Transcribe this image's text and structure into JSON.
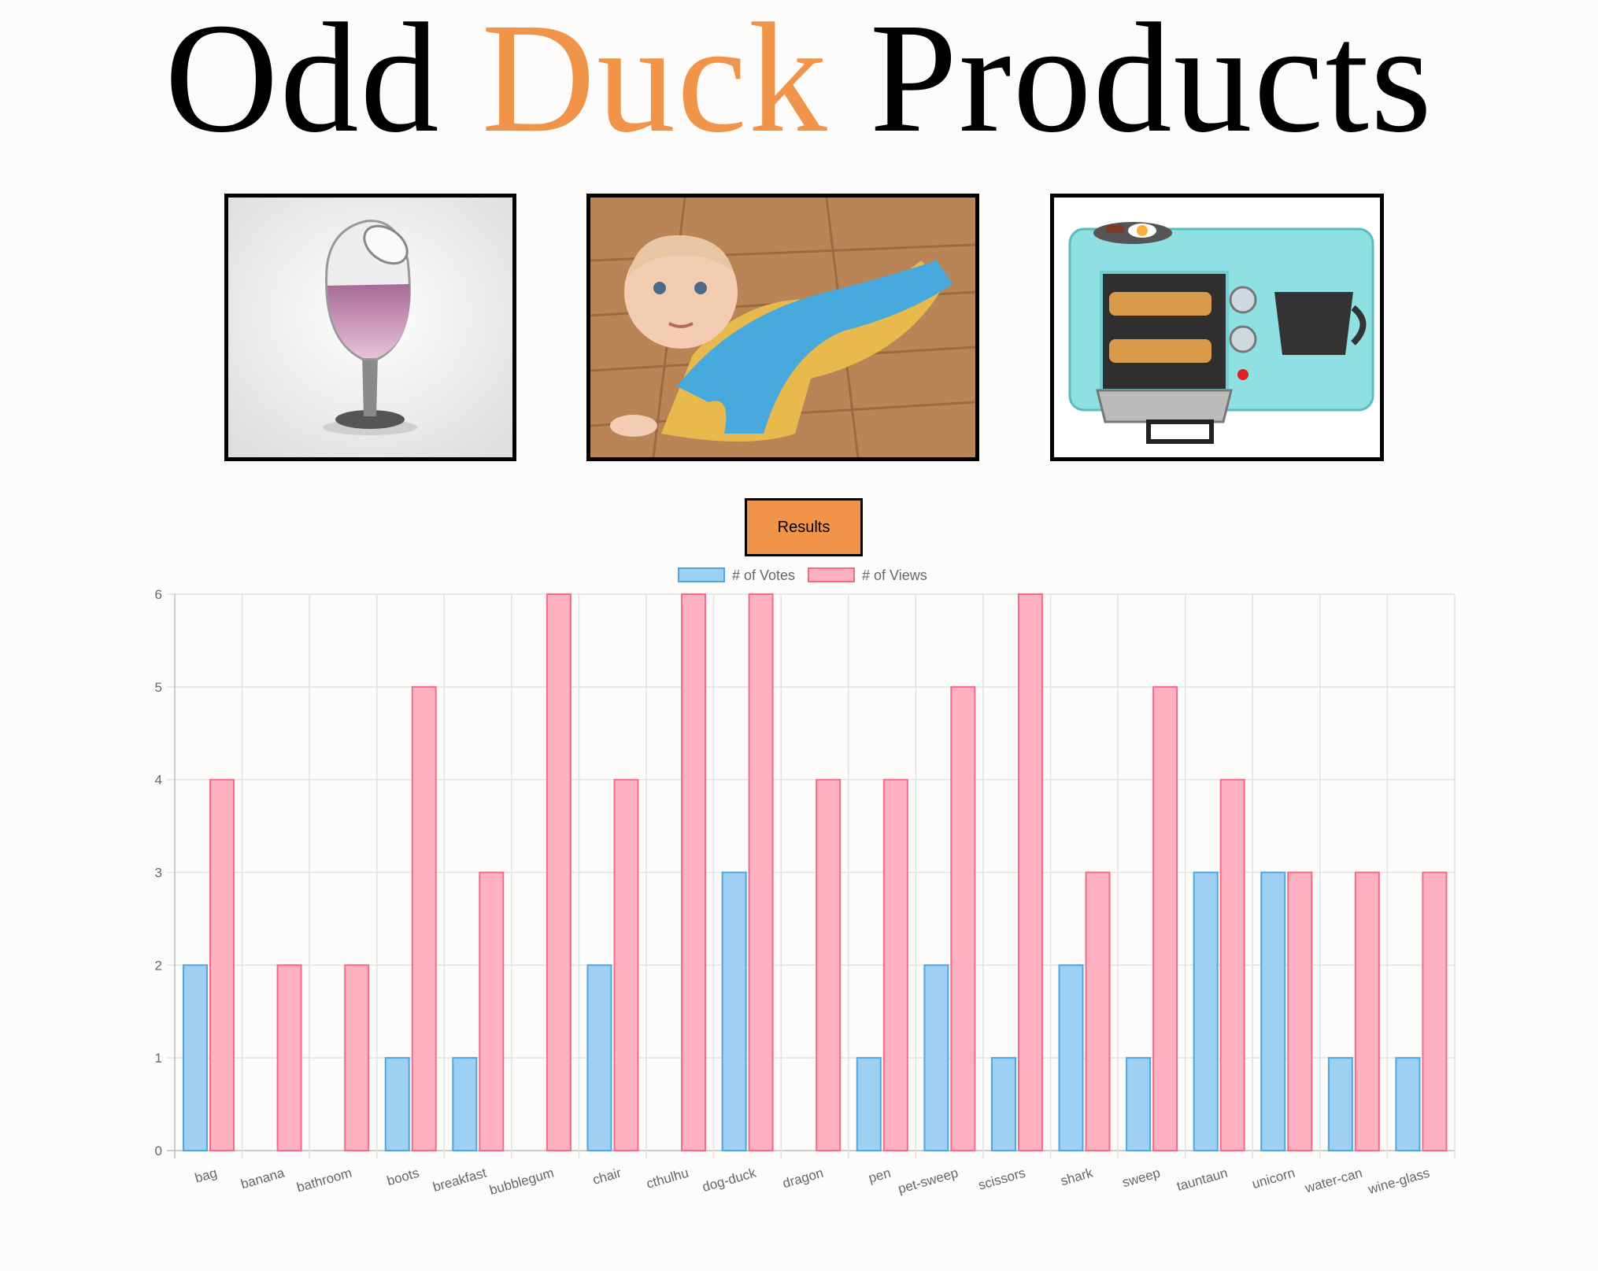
{
  "header": {
    "title_word_1": "Odd",
    "title_word_2": "Duck",
    "title_word_3": "Products",
    "accent_color": "#f0944a"
  },
  "products": [
    {
      "name": "wine-glass",
      "icon": "wine-glass-image"
    },
    {
      "name": "pet-sweep",
      "icon": "baby-mop-onesie-image"
    },
    {
      "name": "breakfast",
      "icon": "breakfast-toaster-oven-image"
    }
  ],
  "results_button": {
    "label": "Results",
    "color": "#f0944a"
  },
  "chart_data": {
    "type": "bar",
    "categories": [
      "bag",
      "banana",
      "bathroom",
      "boots",
      "breakfast",
      "bubblegum",
      "chair",
      "cthulhu",
      "dog-duck",
      "dragon",
      "pen",
      "pet-sweep",
      "scissors",
      "shark",
      "sweep",
      "tauntaun",
      "unicorn",
      "water-can",
      "wine-glass"
    ],
    "series": [
      {
        "name": "# of Votes",
        "values": [
          2,
          0,
          0,
          1,
          1,
          0,
          2,
          0,
          3,
          0,
          1,
          2,
          1,
          2,
          1,
          3,
          3,
          1,
          1
        ],
        "fill": "#9dd0f3",
        "stroke": "#4fa6e0"
      },
      {
        "name": "# of Views",
        "values": [
          4,
          2,
          2,
          5,
          3,
          6,
          4,
          6,
          6,
          4,
          4,
          5,
          6,
          3,
          5,
          4,
          3,
          3,
          3
        ],
        "fill": "#ffb1c1",
        "stroke": "#f46b8a"
      }
    ],
    "yticks": [
      0,
      1,
      2,
      3,
      4,
      5,
      6
    ],
    "ylim": [
      0,
      6
    ],
    "grid": true,
    "legend": "top-center"
  }
}
